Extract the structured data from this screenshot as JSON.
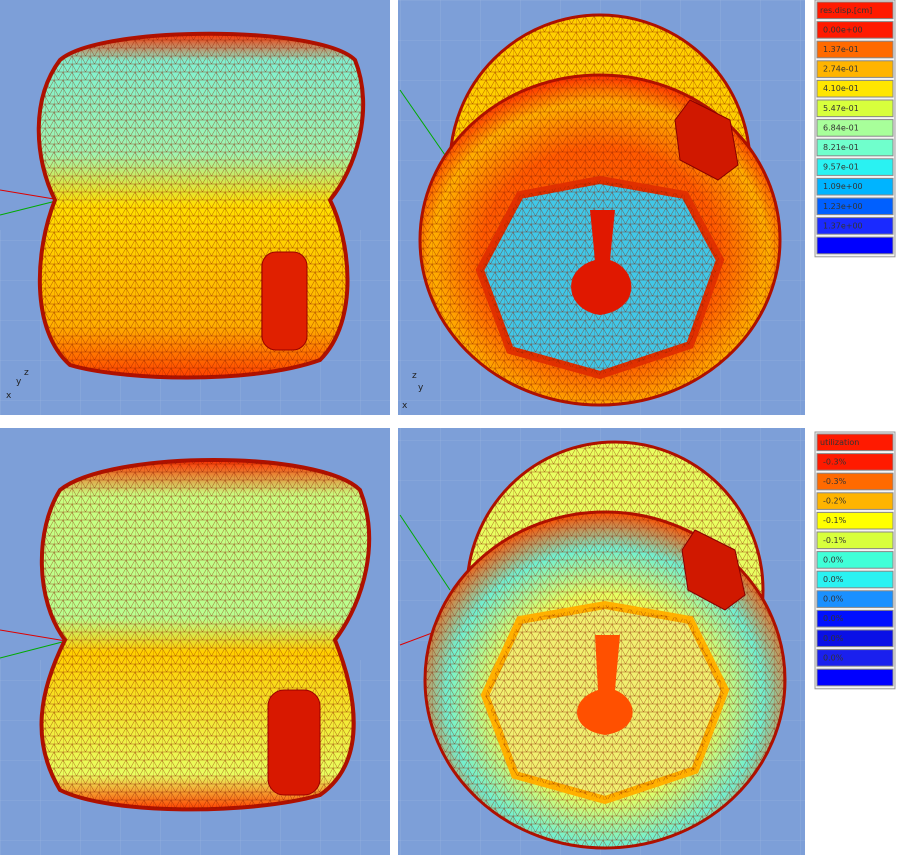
{
  "triad": [
    "z",
    "y",
    "x"
  ],
  "legends": [
    {
      "title": "res.disp.[cm]",
      "rows": [
        {
          "label": "0.00e+00",
          "color": "#ff1a00"
        },
        {
          "label": "1.37e-01",
          "color": "#ff6a00"
        },
        {
          "label": "2.74e-01",
          "color": "#ffb400"
        },
        {
          "label": "4.10e-01",
          "color": "#ffe600"
        },
        {
          "label": "5.47e-01",
          "color": "#d8ff3c"
        },
        {
          "label": "6.84e-01",
          "color": "#a8ff9a"
        },
        {
          "label": "8.21e-01",
          "color": "#70ffcc"
        },
        {
          "label": "9.57e-01",
          "color": "#2af2f2"
        },
        {
          "label": "1.09e+00",
          "color": "#00b4ff"
        },
        {
          "label": "1.23e+00",
          "color": "#0060ff"
        },
        {
          "label": "1.37e+00",
          "color": "#1a2aff"
        },
        {
          "color": "#0000ff"
        }
      ]
    },
    {
      "title": "utilization",
      "rows": [
        {
          "label": "-0.3%",
          "color": "#ff1a00"
        },
        {
          "label": "-0.3%",
          "color": "#ff6a00"
        },
        {
          "label": "-0.2%",
          "color": "#ffb400"
        },
        {
          "label": "-0.1%",
          "color": "#ffff00"
        },
        {
          "label": "-0.1%",
          "color": "#d8ff3c"
        },
        {
          "label": "0.0%",
          "color": "#40ffd8"
        },
        {
          "label": "0.0%",
          "color": "#2af2f2"
        },
        {
          "label": "0.0%",
          "color": "#1a90ff"
        },
        {
          "label": "0.0%",
          "color": "#0010ff"
        },
        {
          "label": "0.0%",
          "color": "#0a10e6"
        },
        {
          "label": "0.0%",
          "color": "#1a20ee"
        },
        {
          "color": "#0000ff"
        }
      ]
    }
  ]
}
